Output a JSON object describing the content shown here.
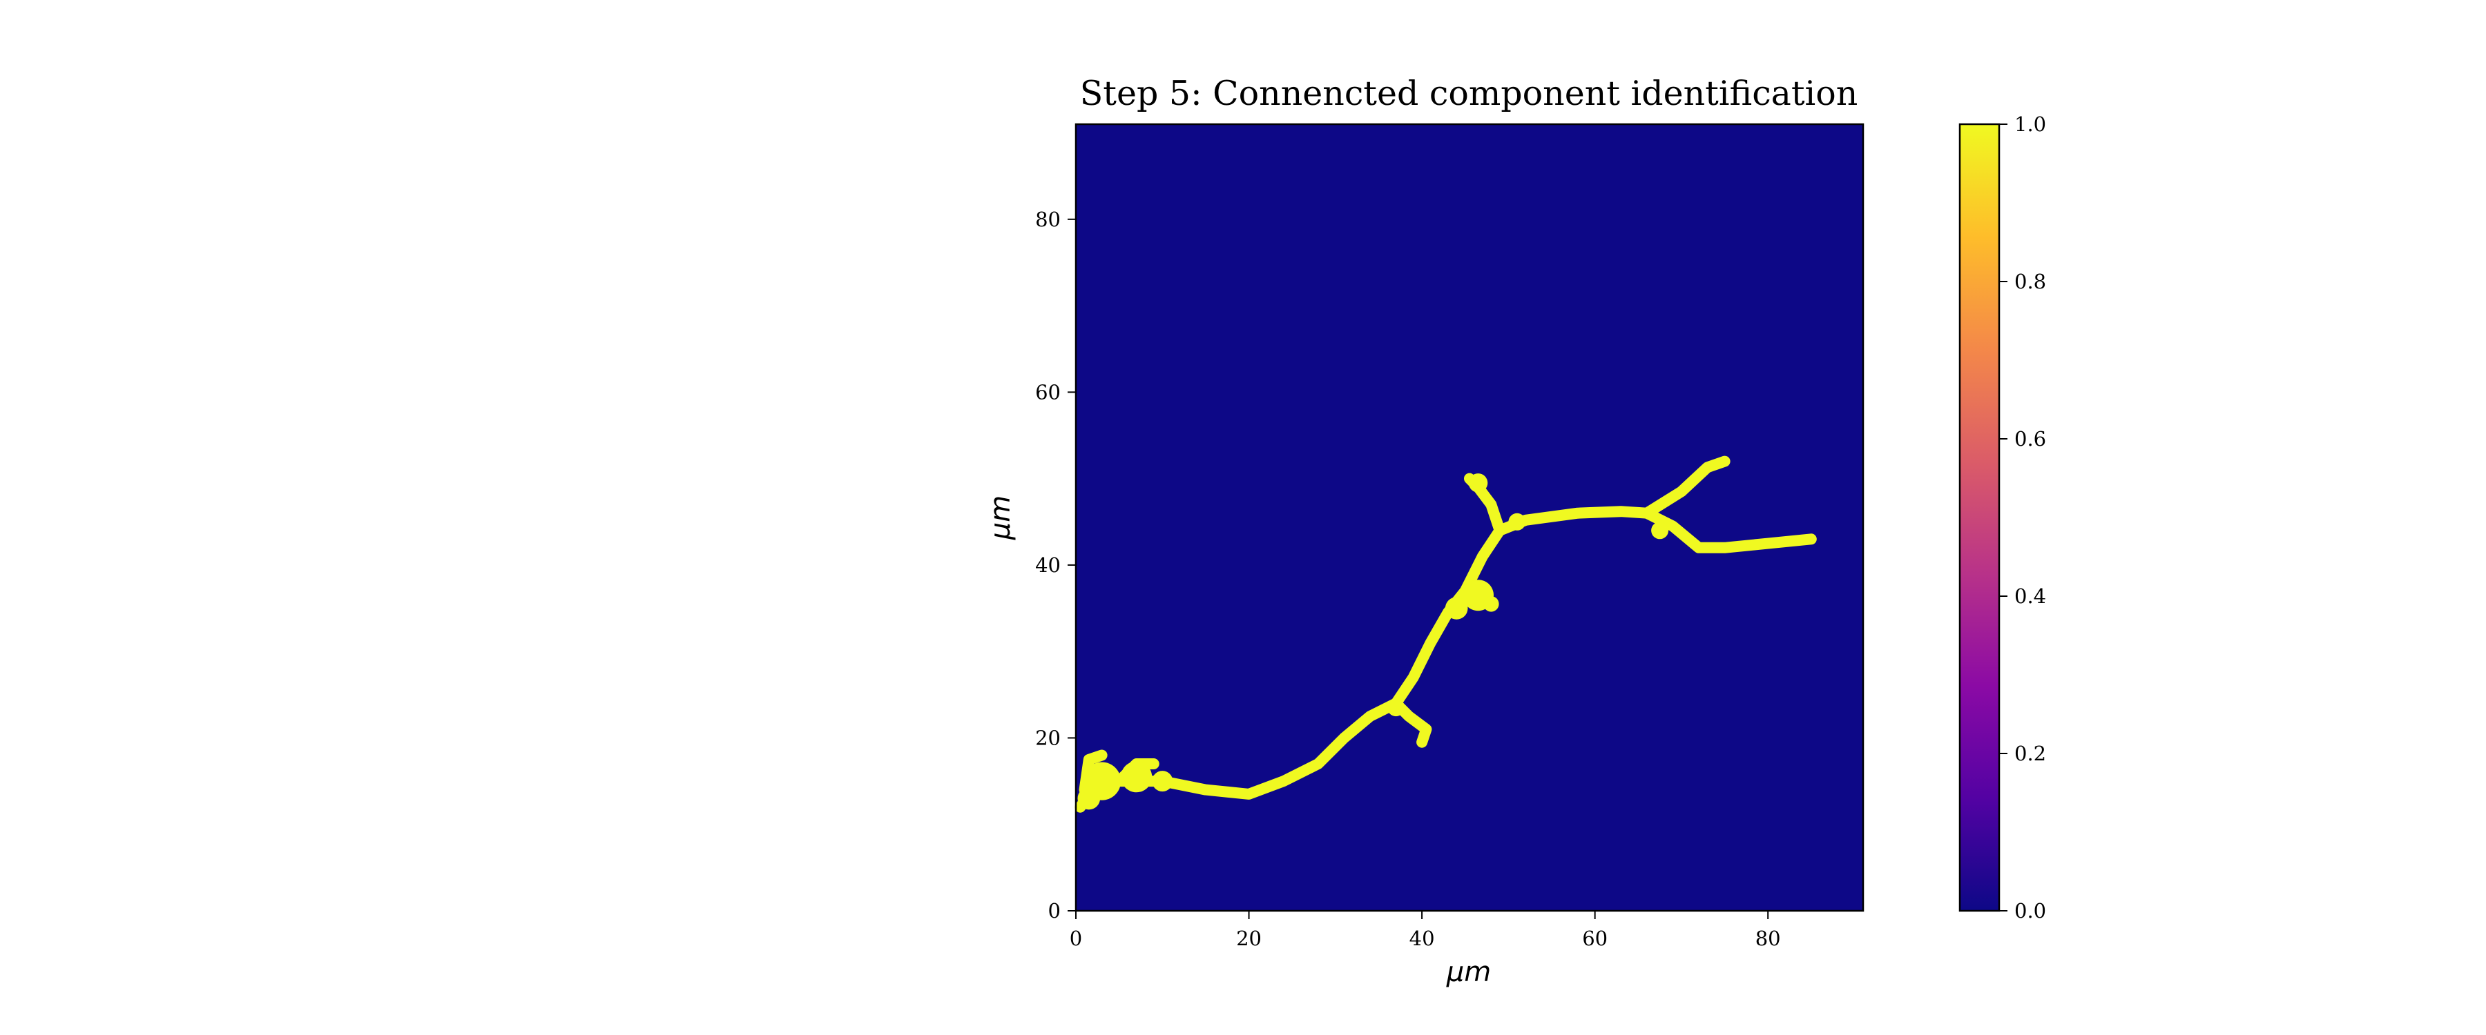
{
  "chart_data": {
    "type": "heatmap",
    "title": "Step 5: Connencted component identification",
    "xlabel": "$\\mu m$",
    "ylabel": "$\\mu m$",
    "xlabel_display": "μm",
    "ylabel_display": "μm",
    "xlim": [
      0,
      91
    ],
    "ylim": [
      0,
      91
    ],
    "xticks": [
      0,
      20,
      40,
      60,
      80
    ],
    "yticks": [
      0,
      20,
      40,
      60,
      80
    ],
    "colormap": "plasma",
    "background_value": 0.0,
    "foreground_value": 1.0,
    "background_color": "#0d0887",
    "foreground_color": "#f0f921",
    "colorbar": {
      "range": [
        0.0,
        1.0
      ],
      "ticks": [
        "0.0",
        "0.2",
        "0.4",
        "0.6",
        "0.8",
        "1.0"
      ],
      "stops": [
        "#0d0887",
        "#5302a3",
        "#8b0aa5",
        "#b83289",
        "#db5c68",
        "#f48849",
        "#febd2a",
        "#f0f921"
      ]
    },
    "component_paths": [
      {
        "name": "main-trunk",
        "points": [
          [
            0.5,
            12
          ],
          [
            2,
            14
          ],
          [
            5,
            15
          ],
          [
            10,
            15
          ],
          [
            15,
            14
          ],
          [
            20,
            13.5
          ],
          [
            24,
            15
          ],
          [
            28,
            17
          ],
          [
            31,
            20
          ],
          [
            34,
            22.5
          ],
          [
            37,
            24
          ],
          [
            39,
            27
          ],
          [
            41,
            31
          ],
          [
            43,
            34.5
          ],
          [
            45,
            37
          ],
          [
            47,
            41
          ],
          [
            49,
            44
          ],
          [
            52,
            45.2
          ],
          [
            58,
            46
          ],
          [
            63,
            46.2
          ],
          [
            66,
            46
          ],
          [
            70,
            48.5
          ],
          [
            73,
            51.3
          ],
          [
            75,
            52
          ]
        ]
      },
      {
        "name": "hook-branch",
        "points": [
          [
            37,
            24
          ],
          [
            38.5,
            22.5
          ],
          [
            40.5,
            21
          ],
          [
            40,
            19.5
          ]
        ]
      },
      {
        "name": "upper-left-branch",
        "points": [
          [
            49,
            44
          ],
          [
            48,
            47
          ],
          [
            46.5,
            49
          ],
          [
            45.5,
            50
          ]
        ]
      },
      {
        "name": "right-branch",
        "points": [
          [
            66,
            46
          ],
          [
            69,
            44.5
          ],
          [
            72,
            42
          ],
          [
            75,
            42
          ],
          [
            80,
            42.5
          ],
          [
            85,
            43
          ]
        ]
      },
      {
        "name": "left-tip-branch",
        "points": [
          [
            1,
            14
          ],
          [
            1.5,
            17.5
          ],
          [
            3,
            18
          ]
        ]
      },
      {
        "name": "left-mid-branch",
        "points": [
          [
            5,
            15
          ],
          [
            7,
            17
          ],
          [
            9,
            17
          ]
        ]
      }
    ],
    "component_blobs": [
      {
        "name": "soma-left-a",
        "cx": 3,
        "cy": 15,
        "r": 2.2
      },
      {
        "name": "soma-left-b",
        "cx": 7,
        "cy": 15.5,
        "r": 1.8
      },
      {
        "name": "soma-left-c",
        "cx": 1.5,
        "cy": 13,
        "r": 1.3
      },
      {
        "name": "soma-left-d",
        "cx": 10,
        "cy": 15,
        "r": 1.2
      },
      {
        "name": "blob-mid-a",
        "cx": 46.5,
        "cy": 36.5,
        "r": 1.8
      },
      {
        "name": "blob-mid-b",
        "cx": 44,
        "cy": 35,
        "r": 1.3
      },
      {
        "name": "blob-mid-c",
        "cx": 48,
        "cy": 35.5,
        "r": 0.9
      },
      {
        "name": "blob-top-a",
        "cx": 46.5,
        "cy": 49.5,
        "r": 1.1
      },
      {
        "name": "blob-junction",
        "cx": 51,
        "cy": 45,
        "r": 1.0
      },
      {
        "name": "blob-right",
        "cx": 67.5,
        "cy": 44,
        "r": 1.0
      },
      {
        "name": "blob-hook",
        "cx": 37,
        "cy": 23.5,
        "r": 1.0
      }
    ]
  }
}
